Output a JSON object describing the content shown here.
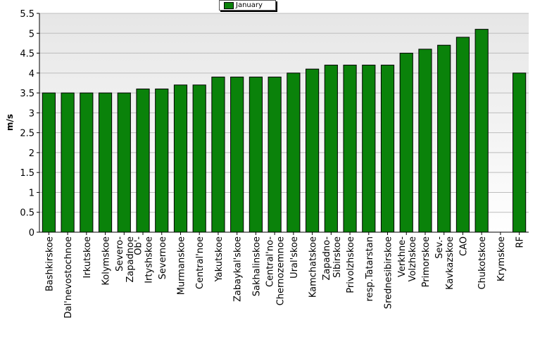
{
  "chart_data": {
    "type": "bar",
    "title": "",
    "xlabel": "",
    "ylabel": "m/s",
    "ylim": [
      0,
      5.5
    ],
    "yticks": [
      "0",
      "0.5",
      "1",
      "1.5",
      "2",
      "2.5",
      "3",
      "3.5",
      "4",
      "4.5",
      "5",
      "5.5"
    ],
    "grid": true,
    "legend": "top-center",
    "series": [
      {
        "name": "January",
        "color": "#0a820a",
        "values": [
          3.5,
          3.5,
          3.5,
          3.5,
          3.5,
          3.6,
          3.6,
          3.7,
          3.7,
          3.9,
          3.9,
          3.9,
          3.9,
          4.0,
          4.1,
          4.2,
          4.2,
          4.2,
          4.2,
          4.5,
          4.6,
          4.7,
          4.9,
          5.1,
          null,
          4.0
        ]
      }
    ],
    "categories": [
      [
        "Bashkirskoe"
      ],
      [
        "Dal'nevostochnoe"
      ],
      [
        "Irkutskoe"
      ],
      [
        "Kolymskoe"
      ],
      [
        "Severo-",
        "Zapadnoe"
      ],
      [
        "Ob'-",
        "Irtyshskoe"
      ],
      [
        "Severnoe"
      ],
      [
        "Murmanskoe"
      ],
      [
        "Central'noe"
      ],
      [
        "Yakutskoe"
      ],
      [
        "Zabaykal'skoe"
      ],
      [
        "Sakhalinskoe"
      ],
      [
        "Central'no-",
        "Chernozemnoe"
      ],
      [
        "Ural'skoe"
      ],
      [
        "Kamchatskoe"
      ],
      [
        "Zapadno-",
        "Sibirskoe"
      ],
      [
        "Privolzhskoe"
      ],
      [
        "resp.Tatarstan"
      ],
      [
        "Srednesibirskoe"
      ],
      [
        "Verkhne-",
        "Volzhskoe"
      ],
      [
        "Primorskoe"
      ],
      [
        "Sev.-",
        "Kavkazskoe"
      ],
      [
        "CAO"
      ],
      [
        "Chukotskoe"
      ],
      [
        "Krymskoe"
      ],
      [
        "RF"
      ]
    ]
  }
}
